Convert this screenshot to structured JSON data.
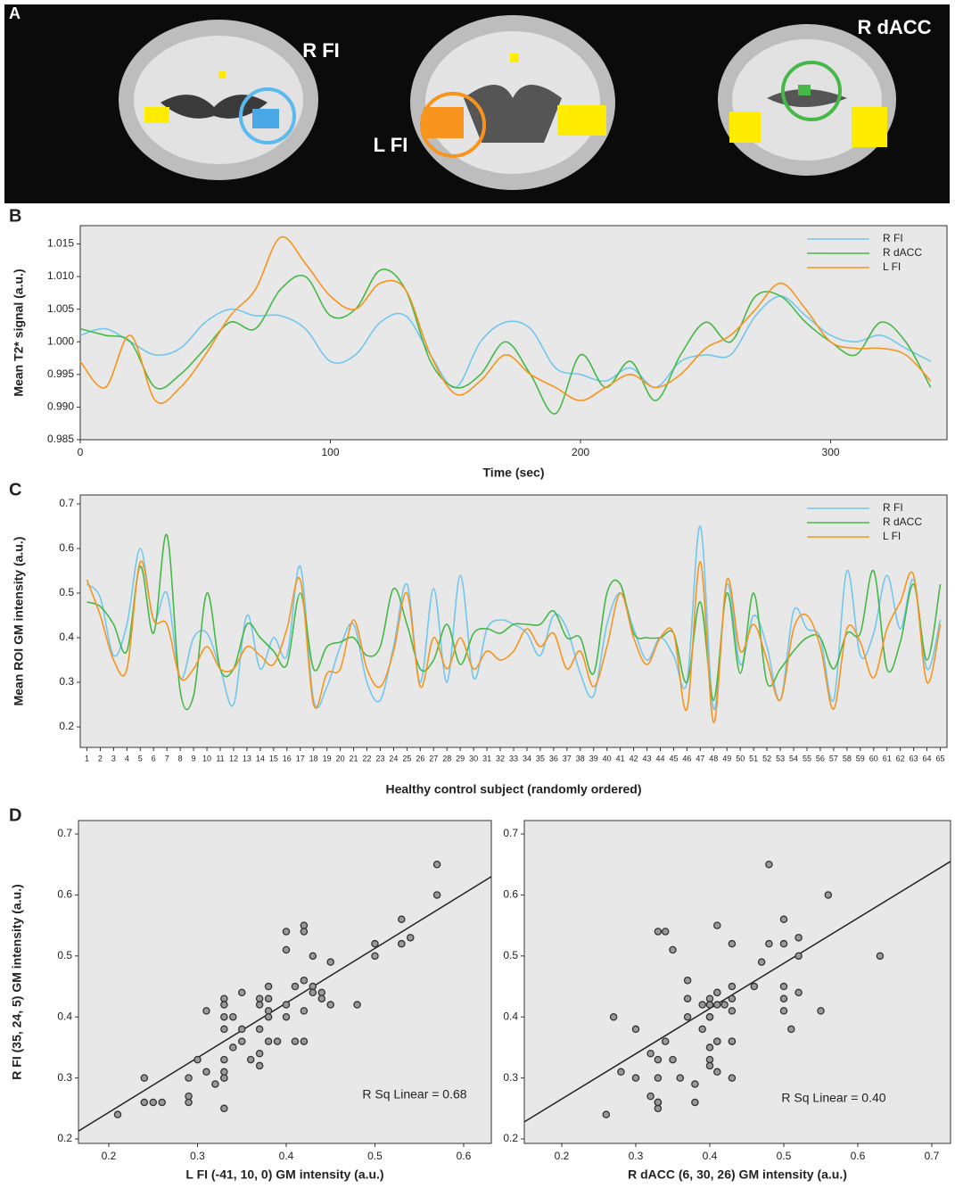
{
  "panel_a": {
    "label": "A",
    "annotations": [
      "R FI",
      "L FI",
      "R dACC"
    ]
  },
  "chart_data": [
    {
      "type": "line",
      "panel": "B",
      "y_label": "Mean T2* signal (a.u.)",
      "x_label": "Time (sec)",
      "x": [
        0,
        10,
        20,
        30,
        40,
        50,
        60,
        70,
        80,
        90,
        100,
        110,
        120,
        130,
        140,
        150,
        160,
        170,
        180,
        190,
        200,
        210,
        220,
        230,
        240,
        250,
        260,
        270,
        280,
        290,
        300,
        310,
        320,
        330,
        340
      ],
      "xlim": [
        0,
        346.5
      ],
      "xticks": [
        0,
        100,
        200,
        300
      ],
      "ylim": [
        0.985,
        1.0178
      ],
      "yticks": [
        0.985,
        {
          "value": 0.99,
          "label": "0.990"
        },
        0.995,
        {
          "value": 1,
          "label": "1.000"
        },
        1.005,
        {
          "value": 1.01,
          "label": "1.010"
        },
        1.015
      ],
      "series": [
        {
          "name": "R FI",
          "color": "#72c7ee",
          "values": [
            1.001,
            1.002,
            1.0,
            0.998,
            0.999,
            1.003,
            1.005,
            1.004,
            1.004,
            1.002,
            0.997,
            0.998,
            1.003,
            1.004,
            0.998,
            0.993,
            1.0,
            1.003,
            1.002,
            0.996,
            0.995,
            0.994,
            0.996,
            0.993,
            0.997,
            0.998,
            0.998,
            1.004,
            1.007,
            1.004,
            1.001,
            1.0,
            1.001,
            0.999,
            0.997
          ]
        },
        {
          "name": "R dACC",
          "color": "#45b847",
          "values": [
            1.002,
            1.001,
            1.0,
            0.993,
            0.995,
            0.999,
            1.003,
            1.002,
            1.008,
            1.01,
            1.004,
            1.005,
            1.011,
            1.008,
            0.997,
            0.993,
            0.995,
            1.0,
            0.995,
            0.989,
            0.998,
            0.993,
            0.997,
            0.991,
            0.998,
            1.003,
            1.0,
            1.007,
            1.007,
            1.003,
            1.0,
            0.998,
            1.003,
            1.0,
            0.993
          ]
        },
        {
          "name": "L FI",
          "color": "#f7941d",
          "values": [
            0.997,
            0.993,
            1.001,
            0.991,
            0.993,
            0.998,
            1.004,
            1.008,
            1.016,
            1.012,
            1.007,
            1.005,
            1.009,
            1.008,
            0.998,
            0.992,
            0.994,
            0.998,
            0.995,
            0.993,
            0.991,
            0.993,
            0.995,
            0.993,
            0.995,
            0.999,
            1.001,
            1.005,
            1.009,
            1.005,
            1.0,
            0.999,
            0.999,
            0.998,
            0.994
          ]
        }
      ]
    },
    {
      "type": "line",
      "panel": "C",
      "y_label": "Mean ROI GM intensity (a.u.)",
      "x_label": "Healthy control subject (randomly ordered)",
      "categories": [
        1,
        2,
        3,
        4,
        5,
        6,
        7,
        8,
        9,
        10,
        11,
        12,
        13,
        14,
        15,
        16,
        17,
        18,
        19,
        20,
        21,
        22,
        23,
        24,
        25,
        26,
        27,
        28,
        29,
        30,
        31,
        32,
        33,
        34,
        35,
        36,
        37,
        38,
        39,
        40,
        41,
        42,
        43,
        44,
        45,
        46,
        47,
        48,
        49,
        50,
        51,
        52,
        53,
        54,
        55,
        56,
        57,
        58,
        59,
        60,
        61,
        62,
        63,
        64,
        65
      ],
      "ylim": [
        0.154,
        0.72
      ],
      "yticks": [
        0.2,
        0.3,
        0.4,
        0.5,
        0.6,
        0.7
      ],
      "series": [
        {
          "name": "R FI",
          "color": "#72c7ee",
          "values": [
            0.52,
            0.49,
            0.36,
            0.43,
            0.6,
            0.44,
            0.5,
            0.31,
            0.4,
            0.41,
            0.33,
            0.25,
            0.45,
            0.33,
            0.4,
            0.36,
            0.56,
            0.26,
            0.29,
            0.38,
            0.43,
            0.3,
            0.26,
            0.38,
            0.52,
            0.3,
            0.51,
            0.3,
            0.54,
            0.31,
            0.42,
            0.44,
            0.43,
            0.41,
            0.36,
            0.45,
            0.42,
            0.32,
            0.27,
            0.43,
            0.5,
            0.42,
            0.35,
            0.4,
            0.36,
            0.3,
            0.65,
            0.24,
            0.52,
            0.34,
            0.45,
            0.38,
            0.26,
            0.46,
            0.42,
            0.4,
            0.26,
            0.55,
            0.36,
            0.41,
            0.54,
            0.42,
            0.53,
            0.33,
            0.44
          ]
        },
        {
          "name": "R dACC",
          "color": "#45b847",
          "values": [
            0.48,
            0.47,
            0.43,
            0.37,
            0.56,
            0.41,
            0.63,
            0.28,
            0.27,
            0.5,
            0.33,
            0.33,
            0.43,
            0.4,
            0.37,
            0.34,
            0.5,
            0.33,
            0.38,
            0.39,
            0.4,
            0.36,
            0.38,
            0.51,
            0.43,
            0.33,
            0.35,
            0.43,
            0.34,
            0.41,
            0.42,
            0.41,
            0.43,
            0.43,
            0.43,
            0.46,
            0.4,
            0.4,
            0.32,
            0.5,
            0.52,
            0.41,
            0.4,
            0.4,
            0.41,
            0.3,
            0.48,
            0.26,
            0.5,
            0.32,
            0.5,
            0.3,
            0.33,
            0.37,
            0.4,
            0.4,
            0.33,
            0.41,
            0.41,
            0.55,
            0.33,
            0.39,
            0.52,
            0.35,
            0.52
          ]
        },
        {
          "name": "L FI",
          "color": "#f7941d",
          "values": [
            0.53,
            0.45,
            0.35,
            0.33,
            0.57,
            0.44,
            0.43,
            0.31,
            0.33,
            0.38,
            0.33,
            0.33,
            0.38,
            0.36,
            0.34,
            0.42,
            0.53,
            0.25,
            0.32,
            0.33,
            0.44,
            0.33,
            0.29,
            0.37,
            0.5,
            0.29,
            0.4,
            0.33,
            0.4,
            0.33,
            0.37,
            0.35,
            0.37,
            0.42,
            0.38,
            0.41,
            0.33,
            0.37,
            0.29,
            0.38,
            0.5,
            0.4,
            0.34,
            0.4,
            0.41,
            0.24,
            0.57,
            0.21,
            0.53,
            0.37,
            0.43,
            0.35,
            0.26,
            0.42,
            0.45,
            0.38,
            0.24,
            0.42,
            0.39,
            0.31,
            0.42,
            0.48,
            0.54,
            0.3,
            0.43
          ]
        }
      ]
    },
    {
      "type": "scatter",
      "panel": "D",
      "y_label": "R FI (35, 24, 5) GM intensity (a.u.)",
      "x_label": "L FI (-41, 10, 0) GM intensity (a.u.)",
      "annotation": "R Sq Linear = 0.68",
      "xlim": [
        0.1658,
        0.6312
      ],
      "xticks": [
        0.2,
        0.3,
        0.4,
        0.5,
        0.6
      ],
      "ylim": [
        0.1927,
        0.722
      ],
      "yticks": [
        0.2,
        0.3,
        0.4,
        0.5,
        0.6,
        0.7
      ],
      "x": [
        0.53,
        0.45,
        0.35,
        0.33,
        0.57,
        0.44,
        0.43,
        0.31,
        0.33,
        0.38,
        0.33,
        0.33,
        0.38,
        0.36,
        0.34,
        0.42,
        0.53,
        0.25,
        0.32,
        0.33,
        0.44,
        0.33,
        0.29,
        0.37,
        0.5,
        0.29,
        0.4,
        0.33,
        0.4,
        0.33,
        0.37,
        0.35,
        0.37,
        0.42,
        0.38,
        0.41,
        0.33,
        0.37,
        0.29,
        0.38,
        0.5,
        0.4,
        0.34,
        0.4,
        0.41,
        0.24,
        0.57,
        0.21,
        0.53,
        0.37,
        0.43,
        0.35,
        0.26,
        0.42,
        0.45,
        0.38,
        0.24,
        0.42,
        0.39,
        0.31,
        0.42,
        0.48,
        0.54,
        0.3,
        0.43
      ],
      "y": [
        0.52,
        0.49,
        0.36,
        0.43,
        0.6,
        0.44,
        0.5,
        0.31,
        0.4,
        0.41,
        0.33,
        0.25,
        0.45,
        0.33,
        0.4,
        0.36,
        0.56,
        0.26,
        0.29,
        0.38,
        0.43,
        0.3,
        0.26,
        0.38,
        0.52,
        0.3,
        0.51,
        0.3,
        0.54,
        0.31,
        0.42,
        0.44,
        0.43,
        0.41,
        0.36,
        0.45,
        0.42,
        0.32,
        0.27,
        0.43,
        0.5,
        0.42,
        0.35,
        0.4,
        0.36,
        0.3,
        0.65,
        0.24,
        0.52,
        0.34,
        0.45,
        0.38,
        0.26,
        0.46,
        0.42,
        0.4,
        0.26,
        0.55,
        0.36,
        0.41,
        0.54,
        0.42,
        0.53,
        0.33,
        0.44
      ],
      "fit_line": {
        "x": [
          0.1658,
          0.6312
        ],
        "y": [
          0.213,
          0.63
        ]
      }
    },
    {
      "type": "scatter",
      "x_label": "R dACC (6, 30, 26) GM intensity (a.u.)",
      "annotation": "R Sq Linear = 0.40",
      "xlim": [
        0.1494,
        0.7253
      ],
      "xticks": [
        0.2,
        0.3,
        0.4,
        0.5,
        0.6,
        0.7
      ],
      "ylim": [
        0.1927,
        0.722
      ],
      "yticks": [
        0.2,
        0.3,
        0.4,
        0.5,
        0.6,
        0.7
      ],
      "x": [
        0.48,
        0.47,
        0.43,
        0.37,
        0.56,
        0.41,
        0.63,
        0.28,
        0.27,
        0.5,
        0.33,
        0.33,
        0.43,
        0.4,
        0.37,
        0.34,
        0.5,
        0.33,
        0.38,
        0.39,
        0.4,
        0.36,
        0.38,
        0.51,
        0.43,
        0.33,
        0.35,
        0.43,
        0.34,
        0.41,
        0.42,
        0.41,
        0.43,
        0.43,
        0.43,
        0.46,
        0.4,
        0.4,
        0.32,
        0.5,
        0.52,
        0.41,
        0.4,
        0.4,
        0.41,
        0.3,
        0.48,
        0.26,
        0.5,
        0.32,
        0.5,
        0.3,
        0.33,
        0.37,
        0.4,
        0.4,
        0.33,
        0.41,
        0.41,
        0.55,
        0.33,
        0.39,
        0.52,
        0.35,
        0.52
      ],
      "y": [
        0.52,
        0.49,
        0.36,
        0.43,
        0.6,
        0.44,
        0.5,
        0.31,
        0.4,
        0.41,
        0.33,
        0.25,
        0.45,
        0.33,
        0.4,
        0.36,
        0.56,
        0.26,
        0.29,
        0.38,
        0.43,
        0.3,
        0.26,
        0.38,
        0.52,
        0.3,
        0.51,
        0.3,
        0.54,
        0.31,
        0.42,
        0.44,
        0.43,
        0.41,
        0.36,
        0.45,
        0.42,
        0.32,
        0.27,
        0.43,
        0.5,
        0.42,
        0.35,
        0.4,
        0.36,
        0.3,
        0.65,
        0.24,
        0.52,
        0.34,
        0.45,
        0.38,
        0.26,
        0.46,
        0.42,
        0.4,
        0.26,
        0.55,
        0.36,
        0.41,
        0.54,
        0.42,
        0.53,
        0.33,
        0.44
      ],
      "fit_line": {
        "x": [
          0.1494,
          0.7253
        ],
        "y": [
          0.228,
          0.655
        ]
      }
    }
  ]
}
